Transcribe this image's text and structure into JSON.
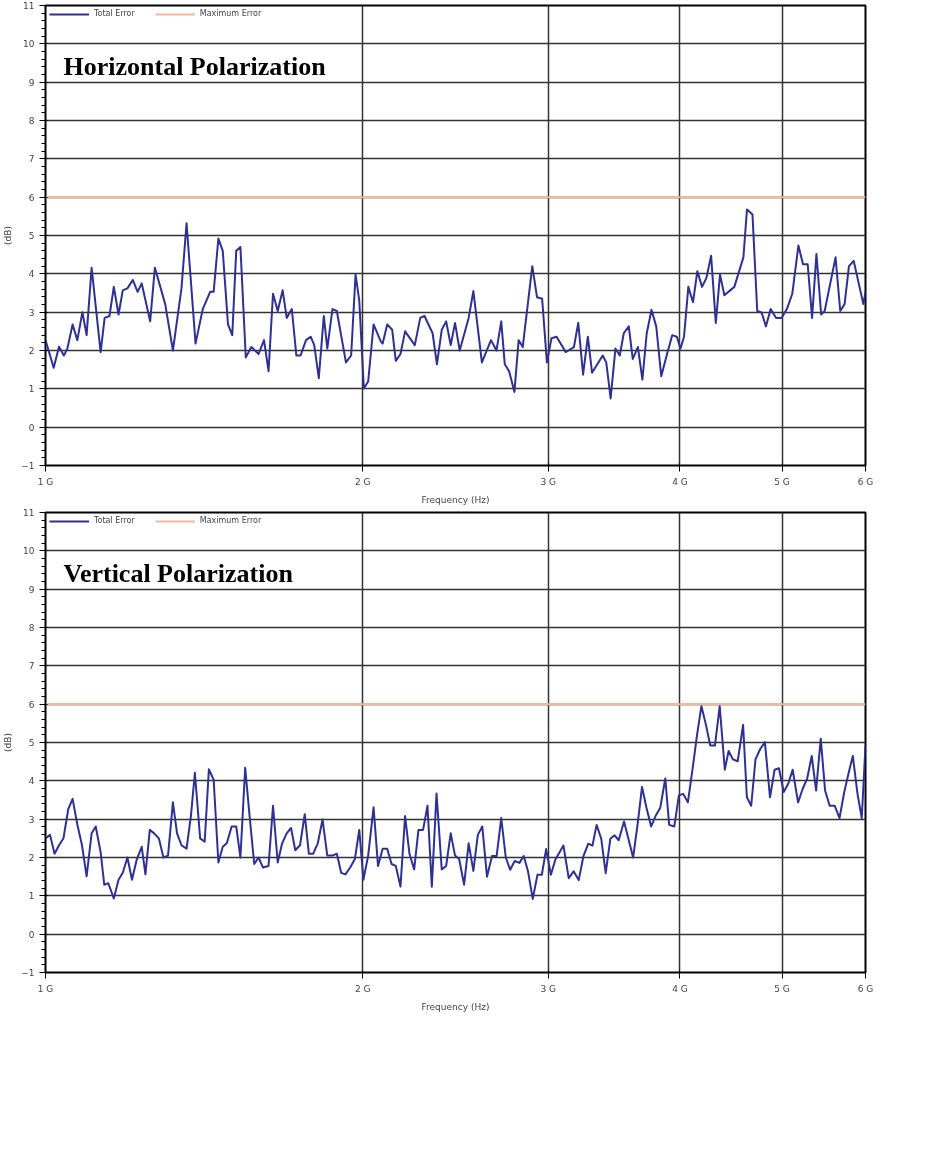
{
  "chart_data": [
    {
      "type": "line",
      "title": "Horizontal Polarization",
      "xlabel": "Frequency (Hz)",
      "ylabel": "(dB)",
      "log": "x",
      "xlim": [
        1,
        6
      ],
      "ylim": [
        -1,
        11
      ],
      "xticks": [
        {
          "value": 1,
          "label": "1 G"
        },
        {
          "value": 2,
          "label": "2 G"
        },
        {
          "value": 3,
          "label": "3 G"
        },
        {
          "value": 4,
          "label": "4 G"
        },
        {
          "value": 5,
          "label": "5 G"
        },
        {
          "value": 6,
          "label": "6 G"
        }
      ],
      "yticks": [
        -1,
        0,
        1,
        2,
        3,
        4,
        5,
        6,
        7,
        8,
        9,
        10,
        11
      ],
      "grid": true,
      "legend": "top left",
      "series": [
        {
          "name": "Total Error",
          "color": "#2e3192",
          "x": [
            1.0,
            1.018,
            1.03,
            1.041,
            1.049,
            1.061,
            1.072,
            1.084,
            1.094,
            1.106,
            1.128,
            1.138,
            1.15,
            1.161,
            1.173,
            1.184,
            1.196,
            1.21,
            1.223,
            1.234,
            1.257,
            1.27,
            1.299,
            1.321,
            1.346,
            1.361,
            1.388,
            1.41,
            1.433,
            1.444,
            1.459,
            1.473,
            1.49,
            1.504,
            1.517,
            1.531,
            1.549,
            1.568,
            1.593,
            1.612,
            1.628,
            1.644,
            1.661,
            1.679,
            1.694,
            1.713,
            1.73,
            1.746,
            1.767,
            1.785,
            1.799,
            1.817,
            1.837,
            1.851,
            1.872,
            1.89,
            1.928,
            1.95,
            1.969,
            1.985,
            2.005,
            2.024,
            2.048,
            2.081,
            2.089,
            2.11,
            2.133,
            2.15,
            2.172,
            2.194,
            2.241,
            2.268,
            2.289,
            2.33,
            2.352,
            2.377,
            2.4,
            2.424,
            2.447,
            2.472,
            2.521,
            2.547,
            2.595,
            2.647,
            2.679,
            2.707,
            2.728,
            2.754,
            2.786,
            2.812,
            2.837,
            2.897,
            2.927,
            2.96,
            2.991,
            3.021,
            3.055,
            3.116,
            3.173,
            3.203,
            3.237,
            3.271,
            3.301,
            3.379,
            3.405,
            3.438,
            3.474,
            3.507,
            3.538,
            3.577,
            3.608,
            3.649,
            3.685,
            3.72,
            3.759,
            3.798,
            3.84,
            3.889,
            3.933,
            3.973,
            4.005,
            4.036,
            4.074,
            4.116,
            4.155,
            4.198,
            4.238,
            4.282,
            4.326,
            4.366,
            4.408,
            4.505,
            4.595,
            4.631,
            4.687,
            4.736,
            4.781,
            4.827,
            4.877,
            4.935,
            4.994,
            5.053,
            5.113,
            5.182,
            5.234,
            5.288,
            5.339,
            5.39,
            5.446,
            5.488,
            5.62,
            5.678,
            5.732,
            5.787,
            5.847,
            5.972,
            6.0
          ],
          "values": [
            2.27,
            1.55,
            2.1,
            1.87,
            2.05,
            2.68,
            2.27,
            3.0,
            2.4,
            4.16,
            1.96,
            2.85,
            2.9,
            3.66,
            2.94,
            3.57,
            3.62,
            3.84,
            3.53,
            3.75,
            2.76,
            4.16,
            3.21,
            2.0,
            3.62,
            5.32,
            2.18,
            3.08,
            3.53,
            3.53,
            4.92,
            4.6,
            2.68,
            2.4,
            4.6,
            4.7,
            1.82,
            2.09,
            1.91,
            2.27,
            1.46,
            3.48,
            3.03,
            3.57,
            2.85,
            3.08,
            1.87,
            1.87,
            2.27,
            2.36,
            2.14,
            1.28,
            2.9,
            2.05,
            3.08,
            3.03,
            1.69,
            1.87,
            3.98,
            3.3,
            1.01,
            1.19,
            2.68,
            2.23,
            2.18,
            2.68,
            2.54,
            1.73,
            1.91,
            2.5,
            2.14,
            2.85,
            2.9,
            2.45,
            1.64,
            2.54,
            2.76,
            2.14,
            2.72,
            2.0,
            2.85,
            3.55,
            1.69,
            2.27,
            2.0,
            2.76,
            1.64,
            1.46,
            0.92,
            2.27,
            2.09,
            4.2,
            3.39,
            3.35,
            1.69,
            2.32,
            2.36,
            1.96,
            2.09,
            2.72,
            1.37,
            2.36,
            1.42,
            1.87,
            1.69,
            0.75,
            2.05,
            1.87,
            2.45,
            2.63,
            1.78,
            2.09,
            1.24,
            2.45,
            3.06,
            2.63,
            1.33,
            1.91,
            2.4,
            2.36,
            2.05,
            2.36,
            3.66,
            3.26,
            4.07,
            3.66,
            3.89,
            4.47,
            2.72,
            3.98,
            3.44,
            3.66,
            4.43,
            5.68,
            5.55,
            3.03,
            2.99,
            2.63,
            3.08,
            2.85,
            2.85,
            3.08,
            3.48,
            4.74,
            4.25,
            4.25,
            2.85,
            4.52,
            2.94,
            3.03,
            4.43,
            3.03,
            3.21,
            4.2,
            4.34,
            3.21,
            3.53
          ]
        },
        {
          "name": "Maximum Error",
          "color": "#f7b39b",
          "x": [
            1,
            6
          ],
          "values": [
            6,
            6
          ]
        }
      ]
    },
    {
      "type": "line",
      "title": "Vertical Polarization",
      "xlabel": "Frequency (Hz)",
      "ylabel": "(dB)",
      "log": "x",
      "xlim": [
        1,
        6
      ],
      "ylim": [
        -1,
        11
      ],
      "xticks": [
        {
          "value": 1,
          "label": "1 G"
        },
        {
          "value": 2,
          "label": "2 G"
        },
        {
          "value": 3,
          "label": "3 G"
        },
        {
          "value": 4,
          "label": "4 G"
        },
        {
          "value": 5,
          "label": "5 G"
        },
        {
          "value": 6,
          "label": "6 G"
        }
      ],
      "yticks": [
        -1,
        0,
        1,
        2,
        3,
        4,
        5,
        6,
        7,
        8,
        9,
        10,
        11
      ],
      "grid": true,
      "legend": "top left",
      "series": [
        {
          "name": "Total Error",
          "color": "#2e3192",
          "x": [
            1.0,
            1.01,
            1.02,
            1.03,
            1.04,
            1.051,
            1.061,
            1.072,
            1.083,
            1.094,
            1.106,
            1.116,
            1.128,
            1.137,
            1.147,
            1.161,
            1.173,
            1.184,
            1.196,
            1.208,
            1.221,
            1.234,
            1.244,
            1.256,
            1.268,
            1.281,
            1.294,
            1.307,
            1.321,
            1.333,
            1.346,
            1.361,
            1.374,
            1.386,
            1.402,
            1.416,
            1.429,
            1.444,
            1.459,
            1.473,
            1.486,
            1.502,
            1.517,
            1.531,
            1.547,
            1.562,
            1.578,
            1.593,
            1.608,
            1.628,
            1.644,
            1.661,
            1.677,
            1.694,
            1.71,
            1.726,
            1.744,
            1.762,
            1.778,
            1.795,
            1.813,
            1.832,
            1.851,
            1.872,
            1.89,
            1.908,
            1.926,
            1.946,
            1.966,
            1.985,
            2.003,
            2.024,
            2.048,
            2.068,
            2.089,
            2.11,
            2.13,
            2.15,
            2.172,
            2.194,
            2.215,
            2.238,
            2.259,
            2.282,
            2.304,
            2.326,
            2.35,
            2.377,
            2.4,
            2.424,
            2.447,
            2.469,
            2.496,
            2.521,
            2.547,
            2.572,
            2.597,
            2.624,
            2.653,
            2.68,
            2.707,
            2.734,
            2.76,
            2.788,
            2.817,
            2.843,
            2.87,
            2.9,
            2.93,
            2.958,
            2.986,
            3.017,
            3.047,
            3.101,
            3.137,
            3.171,
            3.206,
            3.24,
            3.274,
            3.304,
            3.334,
            3.368,
            3.401,
            3.436,
            3.468,
            3.499,
            3.54,
            3.574,
            3.611,
            3.646,
            3.682,
            3.718,
            3.756,
            3.792,
            3.832,
            3.874,
            3.907,
            3.951,
            3.991,
            4.029,
            4.07,
            4.113,
            4.152,
            4.192,
            4.234,
            4.274,
            4.318,
            4.363,
            4.412,
            4.449,
            4.491,
            4.538,
            4.592,
            4.63,
            4.674,
            4.718,
            4.767,
            4.816,
            4.87,
            4.919,
            4.966,
            5.018,
            5.069,
            5.117,
            5.178,
            5.232,
            5.282,
            5.335,
            5.386,
            5.441,
            5.493,
            5.548,
            5.61,
            5.669,
            5.728,
            5.782,
            5.836,
            5.896,
            5.951,
            6.0
          ],
          "values": [
            2.5,
            2.59,
            2.1,
            2.32,
            2.5,
            3.26,
            3.53,
            2.86,
            2.32,
            1.51,
            2.63,
            2.81,
            2.14,
            1.29,
            1.33,
            0.93,
            1.42,
            1.6,
            2.0,
            1.42,
            1.96,
            2.28,
            1.56,
            2.72,
            2.63,
            2.5,
            2.0,
            2.05,
            3.44,
            2.63,
            2.32,
            2.23,
            3.08,
            4.21,
            2.5,
            2.41,
            4.3,
            4.03,
            1.87,
            2.28,
            2.37,
            2.81,
            2.81,
            2.0,
            4.34,
            3.08,
            1.83,
            2.0,
            1.74,
            1.78,
            3.35,
            1.87,
            2.37,
            2.63,
            2.77,
            2.19,
            2.32,
            3.13,
            2.1,
            2.1,
            2.37,
            2.99,
            2.05,
            2.05,
            2.1,
            1.6,
            1.56,
            1.74,
            1.96,
            2.72,
            1.42,
            2.05,
            3.31,
            1.78,
            2.23,
            2.23,
            1.83,
            1.78,
            1.24,
            3.08,
            2.1,
            1.69,
            2.72,
            2.72,
            3.35,
            1.24,
            3.67,
            1.69,
            1.78,
            2.63,
            2.05,
            1.96,
            1.29,
            2.37,
            1.65,
            2.59,
            2.81,
            1.5,
            2.04,
            2.04,
            3.03,
            2.0,
            1.68,
            1.91,
            1.86,
            2.04,
            1.64,
            0.92,
            1.55,
            1.55,
            2.22,
            1.55,
            1.95,
            2.31,
            1.46,
            1.64,
            1.41,
            2.04,
            2.36,
            2.31,
            2.85,
            2.49,
            1.59,
            2.49,
            2.58,
            2.45,
            2.94,
            2.49,
            2.0,
            2.85,
            3.84,
            3.3,
            2.81,
            3.08,
            3.3,
            4.06,
            2.85,
            2.81,
            3.62,
            3.66,
            3.44,
            4.33,
            5.19,
            5.95,
            5.46,
            4.92,
            4.92,
            5.95,
            4.29,
            4.78,
            4.56,
            4.51,
            5.46,
            3.57,
            3.35,
            4.56,
            4.83,
            5.01,
            3.57,
            4.29,
            4.33,
            3.71,
            3.93,
            4.29,
            3.44,
            3.8,
            4.06,
            4.65,
            3.75,
            5.1,
            3.75,
            3.35,
            3.35,
            3.03,
            3.71,
            4.2,
            4.65,
            3.66,
            3.03,
            4.92
          ]
        },
        {
          "name": "Maximum Error",
          "color": "#f7b39b",
          "x": [
            1,
            6
          ],
          "values": [
            6,
            6
          ]
        }
      ]
    }
  ]
}
